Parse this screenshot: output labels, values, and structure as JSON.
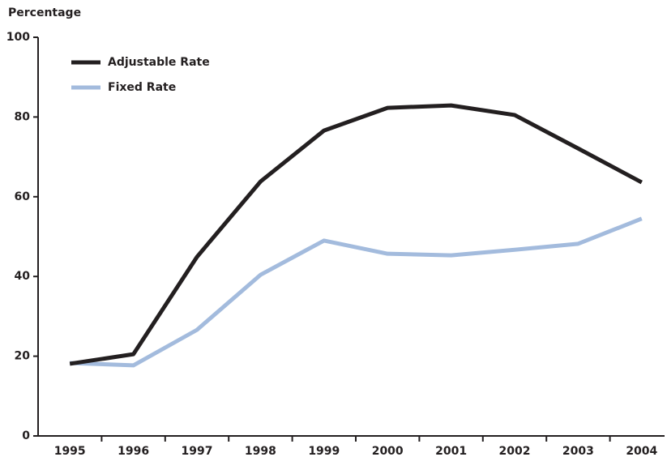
{
  "chart_data": {
    "type": "line",
    "y_label": "Percentage",
    "categories": [
      "1995",
      "1996",
      "1997",
      "1998",
      "1999",
      "2000",
      "2001",
      "2002",
      "2003",
      "2004"
    ],
    "series": [
      {
        "name": "Adjustable Rate",
        "color": "#231f20",
        "values": [
          18.1,
          20.5,
          44.9,
          63.8,
          76.6,
          82.3,
          82.9,
          80.5,
          72.1,
          63.6
        ]
      },
      {
        "name": "Fixed Rate",
        "color": "#a3bbdd",
        "values": [
          18.3,
          17.7,
          26.6,
          40.4,
          49.0,
          45.7,
          45.3,
          46.7,
          48.2,
          54.5
        ]
      }
    ],
    "ylim": [
      0,
      100
    ],
    "yticks": [
      0,
      20,
      40,
      60,
      80,
      100
    ],
    "grid": false,
    "legend": "top-left"
  }
}
